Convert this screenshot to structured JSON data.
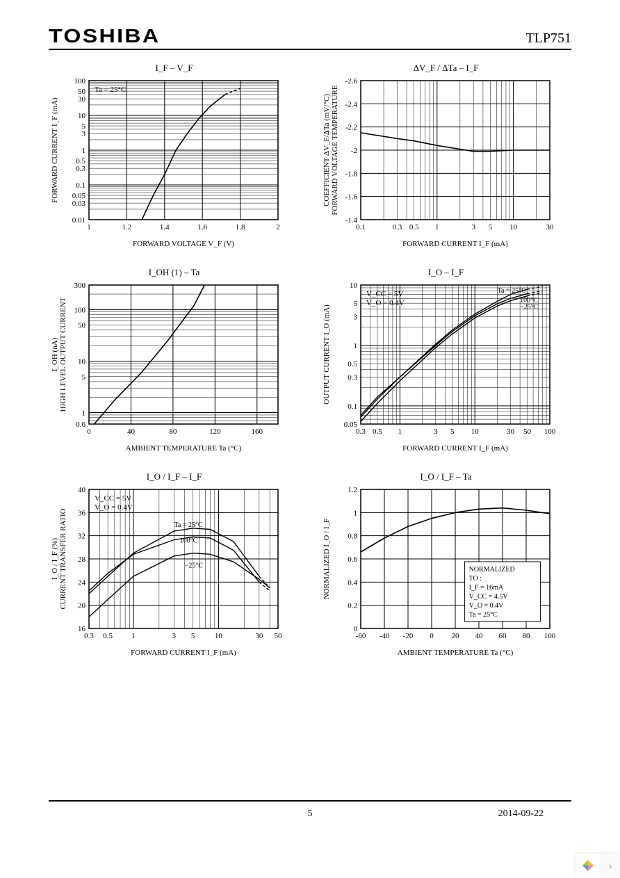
{
  "header": {
    "brand": "TOSHIBA",
    "part": "TLP751"
  },
  "footer": {
    "page": "5",
    "date": "2014-09-22"
  },
  "chart1": {
    "type": "line",
    "title": "I_F  –  V_F",
    "annotation": "Ta = 25°C",
    "xlabel": "FORWARD VOLTAGE   V_F   (V)",
    "ylabel": "FORWARD CURRENT   I_F   (mA)",
    "xscale": "linear",
    "yscale": "log",
    "xlim": [
      1.0,
      2.0
    ],
    "ylim": [
      0.01,
      100
    ],
    "xticks": [
      1.0,
      1.2,
      1.4,
      1.6,
      1.8,
      2.0
    ],
    "yticks": [
      0.01,
      0.03,
      0.05,
      0.1,
      0.3,
      0.5,
      1,
      3,
      5,
      10,
      30,
      50,
      100
    ],
    "yticklabels": [
      "0.01",
      "0.03",
      "0.05",
      "0.1",
      "0.3",
      "0.5",
      "1",
      "3",
      "5",
      "10",
      "30",
      "50",
      "100"
    ],
    "series": [
      {
        "label": "",
        "color": "#000000",
        "width": 1.6,
        "points": [
          [
            1.28,
            0.01
          ],
          [
            1.34,
            0.05
          ],
          [
            1.4,
            0.2
          ],
          [
            1.46,
            1.0
          ],
          [
            1.52,
            3.0
          ],
          [
            1.58,
            8.0
          ],
          [
            1.64,
            18
          ],
          [
            1.72,
            40
          ]
        ]
      },
      {
        "label": "",
        "color": "#000000",
        "width": 1.6,
        "dash": "4,3",
        "points": [
          [
            1.72,
            40
          ],
          [
            1.8,
            60
          ]
        ]
      }
    ],
    "plot_bg": "#ffffff",
    "grid_color": "#000000",
    "font_size": 11
  },
  "chart2": {
    "type": "line",
    "title": "ΔV_F / ΔTa  –  I_F",
    "xlabel": "FORWARD CURRENT   I_F   (mA)",
    "ylabel": "FORWARD VOLTAGE TEMPERATURE\nCOEFFICIENT   ΔV_F/ΔTa   (mV/°C)",
    "xscale": "log",
    "yscale": "linear",
    "xlim": [
      0.1,
      30
    ],
    "ylim": [
      -1.4,
      -2.6
    ],
    "xticks": [
      0.1,
      0.3,
      0.5,
      1,
      3,
      5,
      10,
      30
    ],
    "xticklabels": [
      "0.1",
      "0.3",
      "0.5",
      "1",
      "3",
      "5",
      "10",
      "30"
    ],
    "yticks": [
      -1.4,
      -1.6,
      -1.8,
      -2.0,
      -2.2,
      -2.4,
      -2.6
    ],
    "series": [
      {
        "label": "",
        "color": "#000000",
        "width": 1.6,
        "points": [
          [
            0.1,
            -2.15
          ],
          [
            0.3,
            -2.1
          ],
          [
            0.5,
            -2.08
          ],
          [
            1,
            -2.04
          ],
          [
            3,
            -1.99
          ],
          [
            5,
            -1.99
          ],
          [
            10,
            -2.0
          ],
          [
            30,
            -2.0
          ]
        ]
      }
    ],
    "plot_bg": "#ffffff",
    "grid_color": "#000000",
    "font_size": 11
  },
  "chart3": {
    "type": "line",
    "title": "I_OH (1)  –  Ta",
    "xlabel": "AMBIENT TEMPERATURE   Ta   (°C)",
    "ylabel": "HIGH LEVEL OUTPUT CURRENT\nI_OH   (nA)",
    "xscale": "linear",
    "yscale": "log",
    "xlim": [
      0,
      180
    ],
    "ylim": [
      0.6,
      300
    ],
    "xticks": [
      0,
      40,
      80,
      120,
      160
    ],
    "yticks": [
      0.6,
      1,
      5,
      10,
      50,
      100,
      300
    ],
    "yticklabels": [
      "0.6",
      "1",
      "5",
      "10",
      "50",
      "100",
      "300"
    ],
    "series": [
      {
        "label": "",
        "color": "#000000",
        "width": 1.6,
        "points": [
          [
            5,
            0.6
          ],
          [
            25,
            1.8
          ],
          [
            50,
            6
          ],
          [
            75,
            25
          ],
          [
            100,
            120
          ],
          [
            110,
            300
          ]
        ]
      }
    ],
    "plot_bg": "#ffffff",
    "grid_color": "#000000",
    "font_size": 11
  },
  "chart4": {
    "type": "line",
    "title": "I_O  –  I_F",
    "annotations": [
      "V_CC = 5V",
      "V_O = 0.4V"
    ],
    "curve_labels": [
      {
        "text": "Ta = 25°C",
        "x": 20,
        "y": 7.5
      },
      {
        "text": "100°C",
        "x": 40,
        "y": 5.2
      },
      {
        "text": "−25°C",
        "x": 40,
        "y": 4.0
      }
    ],
    "xlabel": "FORWARD CURRENT   I_F   (mA)",
    "ylabel": "OUTPUT CURRENT   I_O   (mA)",
    "xscale": "log",
    "yscale": "log",
    "xlim": [
      0.3,
      100
    ],
    "ylim": [
      0.05,
      10
    ],
    "xticks": [
      0.3,
      0.5,
      1,
      3,
      5,
      10,
      30,
      50,
      100
    ],
    "xticklabels": [
      "0.3",
      "0.5",
      "1",
      "3",
      "5",
      "10",
      "30",
      "50",
      "100"
    ],
    "yticks": [
      0.05,
      0.1,
      0.3,
      0.5,
      1,
      3,
      5,
      10
    ],
    "yticklabels": [
      "0.05",
      "0.1",
      "0.3",
      "0.5",
      "1",
      "3",
      "5",
      "10"
    ],
    "series": [
      {
        "label": "25C",
        "color": "#000000",
        "width": 1.4,
        "points": [
          [
            0.3,
            0.065
          ],
          [
            0.5,
            0.13
          ],
          [
            1,
            0.3
          ],
          [
            3,
            1.05
          ],
          [
            5,
            1.8
          ],
          [
            10,
            3.3
          ],
          [
            20,
            5.4
          ],
          [
            30,
            7.0
          ],
          [
            50,
            8.5
          ]
        ]
      },
      {
        "label": "25C-dash",
        "color": "#000000",
        "width": 1.4,
        "dash": "4,3",
        "points": [
          [
            50,
            8.5
          ],
          [
            80,
            9.5
          ]
        ]
      },
      {
        "label": "100C",
        "color": "#000000",
        "width": 1.4,
        "points": [
          [
            0.3,
            0.07
          ],
          [
            0.5,
            0.14
          ],
          [
            1,
            0.3
          ],
          [
            3,
            1.0
          ],
          [
            5,
            1.7
          ],
          [
            10,
            3.1
          ],
          [
            20,
            4.9
          ],
          [
            30,
            6.0
          ],
          [
            50,
            7.2
          ]
        ]
      },
      {
        "label": "100C-dash",
        "color": "#000000",
        "width": 1.4,
        "dash": "4,3",
        "points": [
          [
            50,
            7.2
          ],
          [
            80,
            8.0
          ]
        ]
      },
      {
        "label": "-25C",
        "color": "#000000",
        "width": 1.4,
        "points": [
          [
            0.3,
            0.055
          ],
          [
            0.5,
            0.11
          ],
          [
            1,
            0.26
          ],
          [
            3,
            0.92
          ],
          [
            5,
            1.55
          ],
          [
            10,
            2.85
          ],
          [
            20,
            4.5
          ],
          [
            30,
            5.5
          ],
          [
            50,
            6.6
          ]
        ]
      },
      {
        "label": "-25C-dash",
        "color": "#000000",
        "width": 1.4,
        "dash": "4,3",
        "points": [
          [
            50,
            6.6
          ],
          [
            80,
            7.4
          ]
        ]
      }
    ],
    "plot_bg": "#ffffff",
    "grid_color": "#000000",
    "font_size": 11
  },
  "chart5": {
    "type": "line",
    "title": "I_O / I_F  –  I_F",
    "annotations": [
      "V_CC = 5V",
      "V_O = 0.4V"
    ],
    "curve_labels": [
      {
        "text": "Ta = 25°C",
        "x": 3,
        "y": 33.5
      },
      {
        "text": "100°C",
        "x": 3.5,
        "y": 30.8
      },
      {
        "text": "−25°C",
        "x": 4,
        "y": 26.5
      }
    ],
    "xlabel": "FORWARD CURRENT   I_F   (mA)",
    "ylabel": "CURRENT TRANSFER RATIO\nI_O / I_F   (%)",
    "xscale": "log",
    "yscale": "linear",
    "xlim": [
      0.3,
      50
    ],
    "ylim": [
      16,
      40
    ],
    "xticks": [
      0.3,
      0.5,
      1,
      3,
      5,
      10,
      30,
      50
    ],
    "xticklabels": [
      "0.3",
      "0.5",
      "1",
      "3",
      "5",
      "10",
      "30",
      "50"
    ],
    "yticks": [
      16,
      20,
      24,
      28,
      32,
      36,
      40
    ],
    "series": [
      {
        "label": "25C",
        "color": "#000000",
        "width": 1.4,
        "points": [
          [
            0.3,
            22
          ],
          [
            0.5,
            25
          ],
          [
            1,
            29
          ],
          [
            3,
            32.8
          ],
          [
            5,
            33.3
          ],
          [
            8,
            33.1
          ],
          [
            15,
            31
          ],
          [
            30,
            25
          ]
        ]
      },
      {
        "label": "25C-dash",
        "color": "#000000",
        "width": 1.4,
        "dash": "4,3",
        "points": [
          [
            30,
            25
          ],
          [
            40,
            23
          ]
        ]
      },
      {
        "label": "100C",
        "color": "#000000",
        "width": 1.4,
        "points": [
          [
            0.3,
            22.5
          ],
          [
            0.5,
            25.5
          ],
          [
            1,
            28.8
          ],
          [
            3,
            31.3
          ],
          [
            5,
            31.8
          ],
          [
            8,
            31.6
          ],
          [
            15,
            29.5
          ],
          [
            30,
            24
          ]
        ]
      },
      {
        "label": "100C-dash",
        "color": "#000000",
        "width": 1.4,
        "dash": "4,3",
        "points": [
          [
            30,
            24
          ],
          [
            40,
            22.5
          ]
        ]
      },
      {
        "label": "-25C",
        "color": "#000000",
        "width": 1.4,
        "points": [
          [
            0.3,
            18
          ],
          [
            0.5,
            21
          ],
          [
            1,
            25
          ],
          [
            3,
            28.5
          ],
          [
            5,
            29
          ],
          [
            8,
            28.8
          ],
          [
            15,
            27.5
          ],
          [
            30,
            24.5
          ],
          [
            40,
            23
          ]
        ]
      }
    ],
    "plot_bg": "#ffffff",
    "grid_color": "#000000",
    "font_size": 11
  },
  "chart6": {
    "type": "line",
    "title": "I_O / I_F  –  Ta",
    "box_text": [
      "NORMALIZED",
      "TO :",
      "I_F = 16mA",
      "V_CC = 4.5V",
      "V_O = 0.4V",
      "Ta = 25°C"
    ],
    "xlabel": "AMBIENT TEMPERATURE   Ta   (°C)",
    "ylabel": "NORMALIZED   I_O / I_F",
    "xscale": "linear",
    "yscale": "linear",
    "xlim": [
      -60,
      100
    ],
    "ylim": [
      0,
      1.2
    ],
    "xticks": [
      -60,
      -40,
      -20,
      0,
      20,
      40,
      60,
      80,
      100
    ],
    "yticks": [
      0,
      0.2,
      0.4,
      0.6,
      0.8,
      1.0,
      1.2
    ],
    "series": [
      {
        "label": "",
        "color": "#000000",
        "width": 1.6,
        "points": [
          [
            -60,
            0.66
          ],
          [
            -40,
            0.78
          ],
          [
            -20,
            0.88
          ],
          [
            0,
            0.95
          ],
          [
            20,
            1.0
          ],
          [
            40,
            1.03
          ],
          [
            60,
            1.04
          ],
          [
            80,
            1.02
          ],
          [
            100,
            0.99
          ]
        ]
      }
    ],
    "plot_bg": "#ffffff",
    "grid_color": "#000000",
    "font_size": 11
  }
}
